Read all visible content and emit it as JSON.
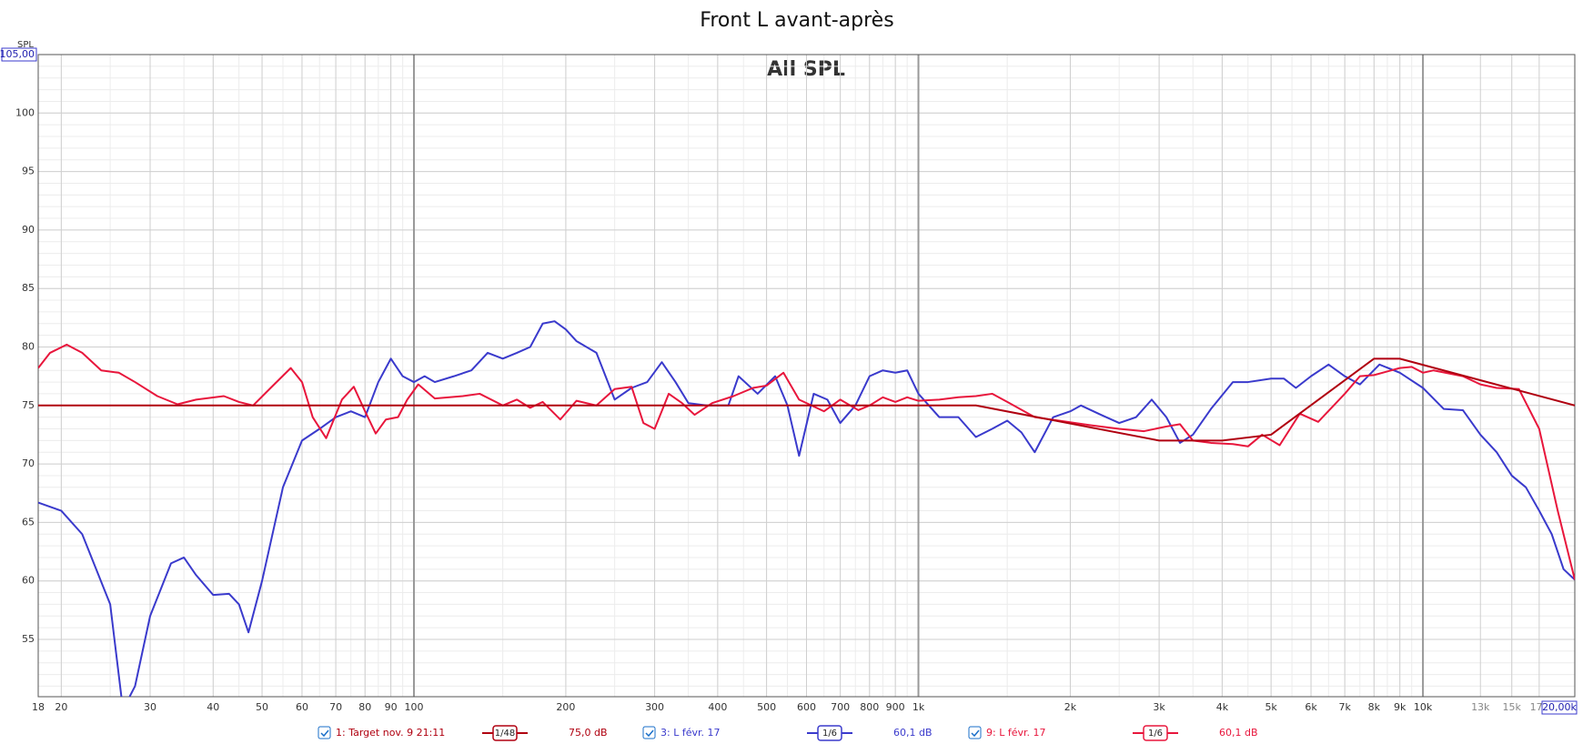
{
  "chart_data": {
    "type": "line",
    "title": "Front L avant-après",
    "subtitle": "All SPL",
    "y_label": "SPL",
    "xscale": "log",
    "grid": true,
    "xlim": [
      18,
      20000
    ],
    "ylim": [
      50.1,
      105
    ],
    "xticks": [
      18,
      20,
      30,
      40,
      50,
      60,
      70,
      80,
      90,
      100,
      200,
      300,
      400,
      500,
      600,
      700,
      800,
      900,
      {
        "value": 1000,
        "label": "1k"
      },
      {
        "value": 2000,
        "label": "2k"
      },
      {
        "value": 3000,
        "label": "3k"
      },
      {
        "value": 4000,
        "label": "4k"
      },
      {
        "value": 5000,
        "label": "5k"
      },
      {
        "value": 6000,
        "label": "6k"
      },
      {
        "value": 7000,
        "label": "7k"
      },
      {
        "value": 8000,
        "label": "8k"
      },
      {
        "value": 9000,
        "label": "9k"
      },
      {
        "value": 10000,
        "label": "10k"
      },
      {
        "value": 13000,
        "label": "13k"
      },
      {
        "value": 15000,
        "label": "15k"
      },
      {
        "value": 17000,
        "label": "17k"
      },
      {
        "value": 20000,
        "label": "20,00k"
      }
    ],
    "yticks": [
      55,
      60,
      65,
      70,
      75,
      80,
      85,
      90,
      95,
      100,
      {
        "value": 105,
        "label": "105,00"
      }
    ],
    "series": [
      {
        "name": "1: Target nov. 9 21:11",
        "color": "#b00010",
        "smoothing": "1/48",
        "offset": "75,0 dB",
        "x": [
          18,
          1300,
          3000,
          4000,
          5000,
          8000,
          9000,
          20000
        ],
        "values": [
          75,
          75,
          72,
          72,
          72.5,
          79,
          79,
          75
        ]
      },
      {
        "name": "3: L févr. 17",
        "color": "#3a3acc",
        "smoothing": "1/6",
        "offset": "60,1 dB",
        "x": [
          18,
          20,
          22,
          25,
          26.5,
          28,
          30,
          33,
          35,
          37,
          40,
          43,
          45,
          47,
          50,
          55,
          60,
          65,
          70,
          75,
          80,
          85,
          90,
          95,
          100,
          105,
          110,
          120,
          130,
          140,
          150,
          160,
          170,
          180,
          190,
          200,
          210,
          230,
          250,
          270,
          290,
          310,
          330,
          350,
          380,
          420,
          440,
          480,
          520,
          550,
          580,
          620,
          660,
          700,
          750,
          800,
          850,
          900,
          950,
          1000,
          1100,
          1200,
          1300,
          1400,
          1500,
          1600,
          1700,
          1850,
          2000,
          2100,
          2300,
          2500,
          2700,
          2900,
          3100,
          3300,
          3500,
          3800,
          4200,
          4500,
          5000,
          5300,
          5600,
          6000,
          6500,
          7000,
          7500,
          8200,
          9000,
          10000,
          11000,
          12000,
          13000,
          14000,
          15000,
          16000,
          17000,
          18000,
          19000,
          20000
        ],
        "values": [
          66.7,
          66,
          64,
          58,
          49,
          51,
          57,
          61.5,
          62,
          60.5,
          58.8,
          58.9,
          58,
          55.6,
          60,
          68,
          72,
          73,
          74,
          74.5,
          74,
          77,
          79,
          77.5,
          77,
          77.5,
          77,
          77.5,
          78,
          79.5,
          79,
          79.5,
          80,
          82,
          82.2,
          81.5,
          80.5,
          79.5,
          75.5,
          76.5,
          77,
          78.7,
          77,
          75.2,
          75,
          75,
          77.5,
          76,
          77.5,
          75,
          70.7,
          76,
          75.5,
          73.5,
          75,
          77.5,
          78,
          77.8,
          78,
          76,
          74,
          74,
          72.3,
          73,
          73.7,
          72.7,
          71,
          74,
          74.5,
          75,
          74.2,
          73.5,
          74,
          75.5,
          74,
          71.8,
          72.5,
          74.7,
          77,
          77,
          77.3,
          77.3,
          76.5,
          77.5,
          78.5,
          77.5,
          76.8,
          78.5,
          77.8,
          76.5,
          74.7,
          74.6,
          72.5,
          71,
          69,
          68,
          66,
          64,
          61,
          60.1
        ]
      },
      {
        "name": "9: L févr. 17",
        "color": "#e8163c",
        "smoothing": "1/6",
        "offset": "60,1 dB",
        "x": [
          18,
          19,
          20.5,
          22,
          24,
          26,
          28,
          31,
          34,
          37,
          42,
          45,
          48,
          52,
          57,
          60,
          63,
          67,
          72,
          76,
          80,
          84,
          88,
          93,
          97,
          102,
          110,
          125,
          135,
          150,
          160,
          170,
          180,
          195,
          210,
          230,
          250,
          270,
          285,
          300,
          320,
          340,
          360,
          390,
          430,
          470,
          500,
          540,
          580,
          650,
          700,
          760,
          800,
          850,
          900,
          950,
          1000,
          1100,
          1200,
          1300,
          1400,
          1500,
          1700,
          1900,
          2200,
          2500,
          2800,
          3100,
          3300,
          3500,
          3800,
          4200,
          4500,
          4800,
          5200,
          5700,
          6200,
          7000,
          7500,
          8000,
          9000,
          9500,
          10000,
          10500,
          12000,
          13000,
          14000,
          15500,
          17000,
          18500,
          20000
        ],
        "values": [
          78.2,
          79.5,
          80.2,
          79.5,
          78,
          77.8,
          77,
          75.8,
          75.1,
          75.5,
          75.8,
          75.3,
          75,
          76.5,
          78.2,
          77,
          74,
          72.2,
          75.5,
          76.6,
          74.5,
          72.6,
          73.8,
          74,
          75.5,
          76.8,
          75.6,
          75.8,
          76,
          75,
          75.5,
          74.8,
          75.3,
          73.8,
          75.4,
          75,
          76.4,
          76.6,
          73.5,
          73,
          76,
          75.2,
          74.2,
          75.2,
          75.8,
          76.5,
          76.7,
          77.8,
          75.5,
          74.5,
          75.5,
          74.6,
          75,
          75.7,
          75.3,
          75.7,
          75.4,
          75.5,
          75.7,
          75.8,
          76,
          75.3,
          74,
          73.7,
          73.3,
          73,
          72.8,
          73.2,
          73.4,
          72,
          71.8,
          71.7,
          71.5,
          72.5,
          71.6,
          74.3,
          73.6,
          76,
          77.5,
          77.6,
          78.2,
          78.3,
          77.8,
          78,
          77.5,
          76.8,
          76.5,
          76.4,
          73,
          66,
          60.1
        ]
      }
    ]
  }
}
